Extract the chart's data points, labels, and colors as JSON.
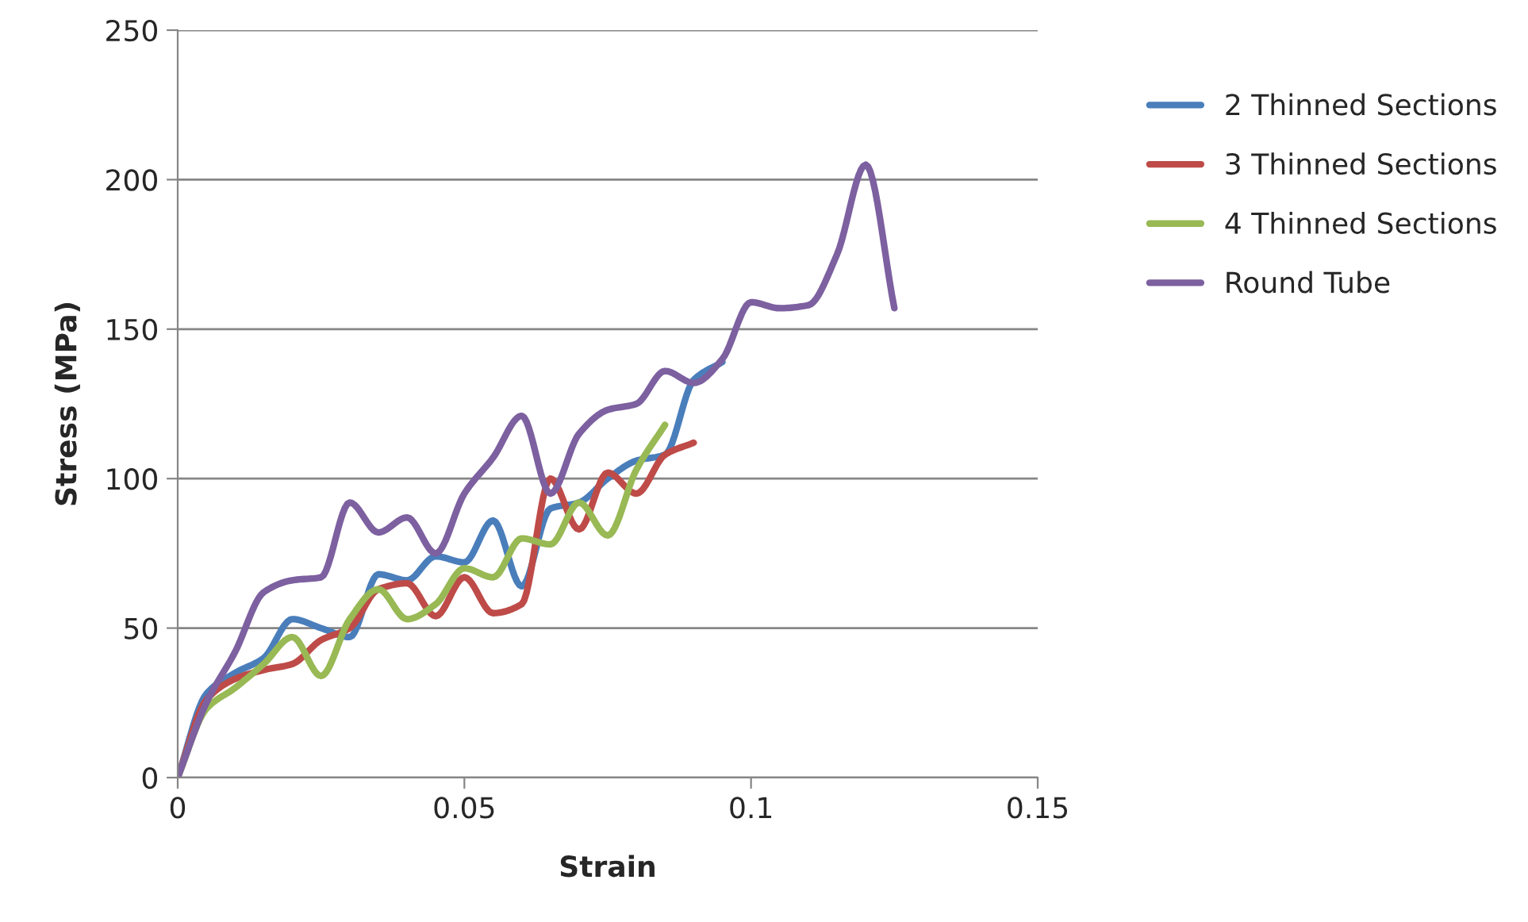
{
  "chart_data": {
    "type": "line",
    "xlabel": "Strain",
    "ylabel": "Stress (MPa)",
    "xlim": [
      0,
      0.15
    ],
    "xticks": [
      0,
      0.05,
      0.1,
      0.15
    ],
    "ylim": [
      0,
      250
    ],
    "yticks": [
      0,
      50,
      100,
      150,
      200,
      250
    ],
    "grid": "y",
    "legend": "right",
    "marker": "none",
    "line_style": "solid",
    "series": [
      {
        "name": "2 Thinned Sections",
        "color": "#4a7ebb",
        "x": [
          0,
          0.005,
          0.01,
          0.015,
          0.02,
          0.025,
          0.03,
          0.035,
          0.04,
          0.045,
          0.05,
          0.055,
          0.06,
          0.065,
          0.07,
          0.075,
          0.08,
          0.085,
          0.09,
          0.095
        ],
        "values": [
          0,
          28,
          35,
          40,
          53,
          50,
          47,
          68,
          66,
          74,
          72,
          86,
          64,
          90,
          92,
          100,
          106,
          108,
          133,
          139
        ]
      },
      {
        "name": "3 Thinned Sections",
        "color": "#be4b48",
        "x": [
          0,
          0.005,
          0.01,
          0.015,
          0.02,
          0.025,
          0.03,
          0.035,
          0.04,
          0.045,
          0.05,
          0.055,
          0.06,
          0.065,
          0.07,
          0.075,
          0.08,
          0.085,
          0.09
        ],
        "values": [
          0,
          26,
          33,
          36,
          38,
          46,
          50,
          63,
          65,
          54,
          67,
          55,
          58,
          100,
          83,
          102,
          95,
          108,
          112
        ]
      },
      {
        "name": "4 Thinned Sections",
        "color": "#98b954",
        "x": [
          0,
          0.005,
          0.01,
          0.015,
          0.02,
          0.025,
          0.03,
          0.035,
          0.04,
          0.045,
          0.05,
          0.055,
          0.06,
          0.065,
          0.07,
          0.075,
          0.08,
          0.085
        ],
        "values": [
          0,
          23,
          30,
          38,
          47,
          34,
          53,
          63,
          53,
          58,
          70,
          67,
          80,
          78,
          92,
          81,
          103,
          118
        ]
      },
      {
        "name": "Round Tube",
        "color": "#7d60a0",
        "x": [
          0,
          0.005,
          0.01,
          0.015,
          0.02,
          0.025,
          0.03,
          0.035,
          0.04,
          0.045,
          0.05,
          0.055,
          0.06,
          0.065,
          0.07,
          0.075,
          0.08,
          0.085,
          0.09,
          0.095,
          0.1,
          0.105,
          0.11,
          0.115,
          0.12,
          0.125
        ],
        "values": [
          0,
          25,
          42,
          62,
          66,
          67,
          92,
          82,
          87,
          75,
          95,
          107,
          121,
          95,
          115,
          123,
          125,
          136,
          132,
          140,
          159,
          157,
          158,
          175,
          205,
          157
        ]
      }
    ]
  }
}
